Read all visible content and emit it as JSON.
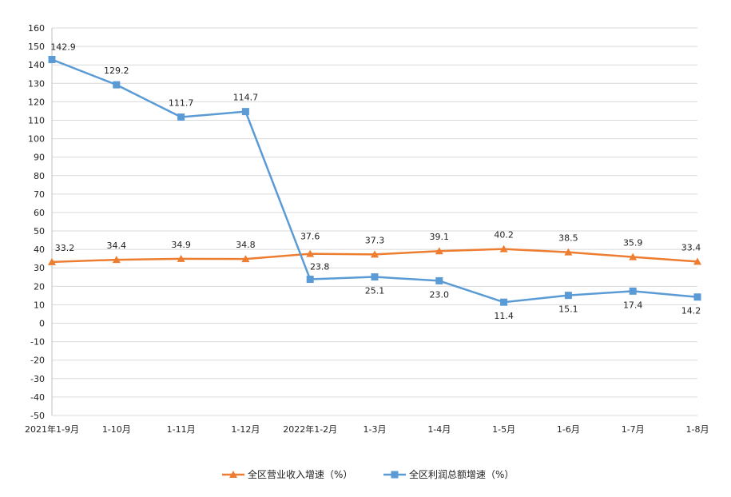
{
  "chart_data": {
    "type": "line",
    "title": "",
    "xlabel": "",
    "ylabel": "",
    "categories": [
      "2021年1-9月",
      "1-10月",
      "1-11月",
      "1-12月",
      "2022年1-2月",
      "1-3月",
      "1-4月",
      "1-5月",
      "1-6月",
      "1-7月",
      "1-8月"
    ],
    "ylim": [
      -50,
      160
    ],
    "yticks": [
      160,
      150,
      140,
      130,
      120,
      110,
      100,
      90,
      80,
      70,
      60,
      50,
      40,
      30,
      20,
      10,
      0,
      -10,
      -20,
      -30,
      -40,
      -50
    ],
    "grid": true,
    "legend_position": "bottom",
    "series": [
      {
        "name": "全区营业收入增速（%）",
        "color": "#ED7D31",
        "marker": "triangle",
        "values": [
          33.2,
          34.4,
          34.9,
          34.8,
          37.6,
          37.3,
          39.1,
          40.2,
          38.5,
          35.9,
          33.4
        ],
        "labels": [
          "33.2",
          "34.4",
          "34.9",
          "34.8",
          "37.6",
          "37.3",
          "39.1",
          "40.2",
          "38.5",
          "35.9",
          "33.4"
        ]
      },
      {
        "name": "全区利润总额增速（%）",
        "color": "#5B9BD5",
        "marker": "square",
        "values": [
          142.9,
          129.2,
          111.7,
          114.7,
          23.8,
          25.1,
          23.0,
          11.4,
          15.1,
          17.4,
          14.2
        ],
        "labels": [
          "142.9",
          "129.2",
          "111.7",
          "114.7",
          "23.8",
          "25.1",
          "23.0",
          "11.4",
          "15.1",
          "17.4",
          "14.2"
        ]
      }
    ]
  }
}
